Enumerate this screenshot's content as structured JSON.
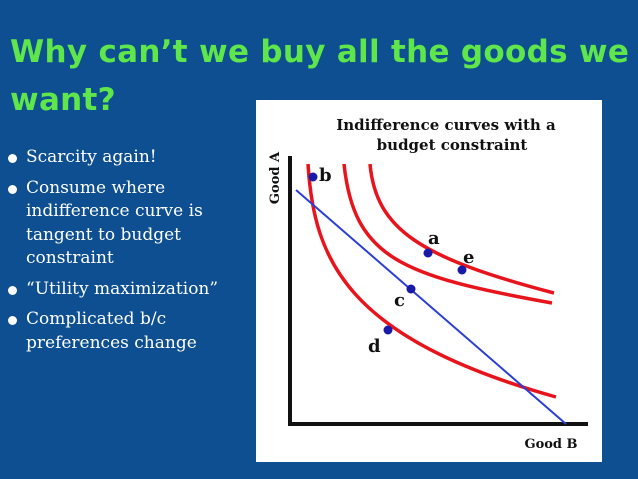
{
  "slide": {
    "title": "Why can’t we buy all the goods we want?",
    "title_color": "#5ee64a",
    "background": "#0d4f91",
    "bullets": [
      "Scarcity again!",
      "Consume where indifference curve is tangent to budget constraint",
      "“Utility maximization”",
      "Complicated b/c preferences change"
    ]
  },
  "figure": {
    "title_line1": "Indifference curves with a",
    "title_line2": "budget constraint",
    "y_axis_label": "Good A",
    "x_axis_label": "Good B",
    "curve_color": "#e8141c",
    "line_color": "#2a3fd6",
    "point_color": "#1a1aa8",
    "points": [
      {
        "label": "b"
      },
      {
        "label": "a"
      },
      {
        "label": "e"
      },
      {
        "label": "c"
      },
      {
        "label": "d"
      }
    ]
  }
}
